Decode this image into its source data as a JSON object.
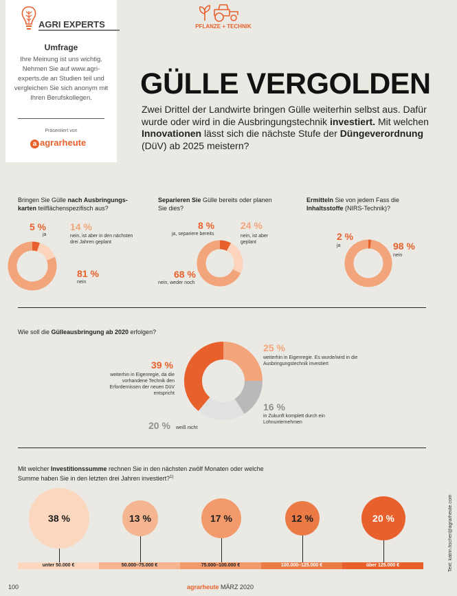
{
  "sidebar": {
    "brand": "AGRI EXPERTS",
    "title": "Umfrage",
    "text": "Ihre Meinung ist uns wichtig. Nehmen Sie auf www.agri-experts.de an Studien teil und vergleichen Sie sich anonym mit Ihren Berufskollegen.",
    "presented_by": "Präsentiert von",
    "logo": "agrarheute"
  },
  "category": "PFLANZE + TECHNIK",
  "headline": "GÜLLE VERGOLDEN",
  "intro": {
    "part1": "Zwei Drittel der Landwirte bringen Gülle weiterhin selbst aus. Dafür wurde oder wird in die Ausbringungstechnik ",
    "bold1": "investiert.",
    "part2": " Mit welchen ",
    "bold2": "Innovationen",
    "part3": " lässt sich die nächste Stufe der ",
    "bold3": "Düngeverordnung",
    "part4": " (DüV) ab 2025 meistern?"
  },
  "colors": {
    "accent": "#e8612c",
    "light": "#f2a47a",
    "pale": "#fbd4bb",
    "grey": "#b9b9b9",
    "background": "#ebe9e4"
  },
  "chart_data": [
    {
      "type": "pie",
      "donut": true,
      "question_pre": "Bringen Sie Gülle ",
      "question_bold": "nach Ausbringungs-karten",
      "question_post": " teilflächenspezifisch aus?",
      "slices": [
        {
          "value": 5,
          "label": "5 %",
          "text": "ja",
          "color": "#e8612c"
        },
        {
          "value": 14,
          "label": "14 %",
          "text": "nein, ist aber in den nächsten drei Jahren geplant",
          "color": "#fbd4bb"
        },
        {
          "value": 81,
          "label": "81 %",
          "text": "nein",
          "color": "#f2a47a"
        }
      ]
    },
    {
      "type": "pie",
      "donut": true,
      "question_bold": "Separieren Sie",
      "question_post": " Gülle bereits oder planen Sie dies?",
      "slices": [
        {
          "value": 8,
          "label": "8 %",
          "text": "ja, separiere bereits",
          "color": "#e8612c"
        },
        {
          "value": 24,
          "label": "24 %",
          "text": "nein, ist aber geplant",
          "color": "#fbd4bb"
        },
        {
          "value": 68,
          "label": "68 %",
          "text": "nein, weder noch",
          "color": "#f2a47a"
        }
      ]
    },
    {
      "type": "pie",
      "donut": true,
      "question_bold": "Ermitteln",
      "question_post": " Sie von jedem Fass die ",
      "question_bold2": "Inhaltsstoffe",
      "question_post2": " (NIRS-Technik)?",
      "slices": [
        {
          "value": 2,
          "label": "2 %",
          "text": "ja",
          "color": "#e8612c"
        },
        {
          "value": 98,
          "label": "98 %",
          "text": "nein",
          "color": "#f2a47a"
        }
      ]
    },
    {
      "type": "pie",
      "donut": true,
      "question_pre": "Wie soll die ",
      "question_bold": "Gülleausbringung ab 2020",
      "question_post": " erfolgen?",
      "slices": [
        {
          "value": 25,
          "label": "25 %",
          "text": "weiterhin in Eigenregie. Es wurde/wird in die Ausbringungstechnik investiert",
          "color": "#f2a47a"
        },
        {
          "value": 16,
          "label": "16 %",
          "text": "in Zukunft komplett durch ein Lohnunternehmen",
          "color": "#b9b9b9"
        },
        {
          "value": 20,
          "label": "20 %",
          "text": "weiß nicht",
          "color": "#e1e1e1"
        },
        {
          "value": 39,
          "label": "39 %",
          "text": "weiterhin in Eigenregie, da die vorhandene Technik den Erfordernissen der neuen DüV entspricht",
          "color": "#e8612c"
        }
      ]
    },
    {
      "type": "bar",
      "question_pre": "Mit welcher ",
      "question_bold": "Investitionssumme",
      "question_post": " rechnen Sie in den nächsten zwölf Monaten oder welche Summe haben Sie in den letzten drei Jahren investiert?",
      "footnote_mark": "1)",
      "categories": [
        "unter 50.000 €",
        "50.000–75.000 €",
        "75.000–100.000 €",
        "100.000–125.000 €",
        "über 125.000 €"
      ],
      "values": [
        38,
        13,
        17,
        12,
        20
      ],
      "labels": [
        "38 %",
        "13 %",
        "17 %",
        "12 %",
        "20 %"
      ],
      "colors": [
        "#fcd7bf",
        "#f5b591",
        "#f29a6c",
        "#ec7a45",
        "#e8612c"
      ]
    }
  ],
  "credit": "Text: katrin.fischer@agrarheute.com",
  "footer": {
    "page": "100",
    "magazine": "agrarheute",
    "issue": "MÄRZ 2020"
  }
}
